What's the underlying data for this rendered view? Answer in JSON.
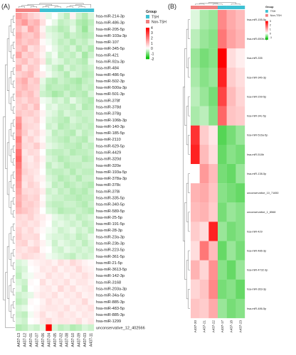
{
  "panel_labels": [
    "(A)",
    "(B)"
  ],
  "colors": {
    "low": "#00c000",
    "mid": "#ffffff",
    "high": "#ff0000",
    "group_tsh": "#3ec1d3",
    "group_nontsh": "#f08080"
  },
  "chart_data": [
    {
      "type": "heatmap",
      "title": "(A)",
      "legend_group_title": "Group",
      "legend_group_items": [
        "TSH",
        "Non-TSH"
      ],
      "legend_scale_ticks": [
        "4",
        "3",
        "2",
        "1",
        "0",
        "-1",
        "-2"
      ],
      "value_range": [
        -2,
        4
      ],
      "columns": [
        "A437-13",
        "A437-12",
        "A437-01",
        "A437-07",
        "A437-06",
        "A437-04",
        "A437-05",
        "A437-02",
        "A437-08",
        "A437-10",
        "A437-09",
        "A437-03",
        "A437-11"
      ],
      "column_groups": [
        "Non-TSH",
        "Non-TSH",
        "Non-TSH",
        "Non-TSH",
        "TSH",
        "TSH",
        "TSH",
        "TSH",
        "TSH",
        "TSH",
        "TSH",
        "TSH",
        "TSH"
      ],
      "rows": [
        "hsa-miR-214-3p",
        "hsa-miR-486-3p",
        "hsa-miR-205-5p",
        "hsa-miR-103a-3p",
        "hsa-miR-107",
        "hsa-miR-345-5p",
        "hsa-miR-421",
        "hsa-miR-92a-3p",
        "hsa-miR-484",
        "hsa-miR-486-5p",
        "hsa-miR-502-3p",
        "hsa-miR-500a-3p",
        "hsa-miR-501-3p",
        "hsa-miR-378f",
        "hsa-miR-378d",
        "hsa-miR-378g",
        "hsa-miR-106b-3p",
        "hsa-miR-140-3p",
        "hsa-miR-185-5p",
        "hsa-miR-2110",
        "hsa-miR-629-5p",
        "hsa-miR-4429",
        "hsa-miR-320d",
        "hsa-miR-320e",
        "hsa-miR-193a-5p",
        "hsa-miR-378a-3p",
        "hsa-miR-378c",
        "hsa-miR-378i",
        "hsa-miR-335-5p",
        "hsa-miR-340-5p",
        "hsa-miR-589-5p",
        "hsa-miR-25-5p",
        "hsa-miR-191-5p",
        "hsa-miR-28-3p",
        "hsa-miR-23a-3p",
        "hsa-miR-23b-3p",
        "hsa-miR-223-5p",
        "hsa-miR-361-5p",
        "hsa-miR-21-5p",
        "hsa-miR-3613-5p",
        "hsa-miR-142-3p",
        "hsa-miR-3168",
        "hsa-miR-203a-3p",
        "hsa-miR-34a-5p",
        "hsa-miR-885-3p",
        "hsa-miR-483-5p",
        "hsa-miR-885-3p",
        "hsa-miR-1299",
        "unconservative_12_402566"
      ],
      "values": [
        [
          1.5,
          1.2,
          0.8,
          0.6,
          0.3,
          -0.2,
          0.0,
          -0.3,
          -0.5,
          0.2,
          -0.4,
          -0.6,
          -0.3
        ],
        [
          1.2,
          1.6,
          1.0,
          1.2,
          0.5,
          0.0,
          -0.2,
          -0.5,
          -0.4,
          -0.3,
          -0.6,
          -0.7,
          -0.5
        ],
        [
          1.0,
          0.6,
          1.4,
          1.0,
          0.2,
          -0.3,
          -0.4,
          -0.6,
          -0.5,
          -0.2,
          -0.5,
          -0.8,
          -0.4
        ],
        [
          1.3,
          0.9,
          0.8,
          1.1,
          0.4,
          -0.2,
          -0.3,
          -0.4,
          -0.6,
          -0.4,
          -0.5,
          -0.6,
          -0.5
        ],
        [
          1.1,
          0.8,
          1.0,
          0.9,
          0.1,
          -0.1,
          -0.3,
          -0.5,
          -0.4,
          -0.6,
          -0.4,
          -0.5,
          -0.3
        ],
        [
          0.9,
          1.2,
          0.5,
          0.7,
          0.3,
          0.0,
          -0.2,
          -0.4,
          -0.5,
          -0.3,
          -0.6,
          -0.4,
          -0.6
        ],
        [
          1.4,
          0.7,
          0.9,
          0.6,
          0.2,
          -0.3,
          -0.1,
          -0.5,
          -0.4,
          -0.5,
          -0.3,
          -0.7,
          -0.4
        ],
        [
          0.8,
          1.0,
          0.6,
          0.8,
          0.4,
          -0.4,
          -0.2,
          -0.3,
          -0.5,
          -0.4,
          -0.5,
          -0.6,
          -0.2
        ],
        [
          1.2,
          0.5,
          0.9,
          0.7,
          0.0,
          -0.2,
          -0.4,
          -0.6,
          -0.3,
          -0.5,
          -0.4,
          -0.5,
          -0.4
        ],
        [
          0.7,
          0.9,
          1.1,
          0.5,
          0.3,
          -0.1,
          -0.3,
          -0.4,
          -0.6,
          -0.3,
          -0.4,
          -0.6,
          -0.5
        ],
        [
          1.0,
          1.3,
          0.7,
          0.9,
          -0.2,
          -0.5,
          -0.6,
          -0.4,
          -0.5,
          -0.6,
          -0.7,
          -0.5,
          -0.4
        ],
        [
          0.9,
          1.1,
          0.8,
          0.7,
          -0.3,
          -0.6,
          -0.5,
          -0.5,
          -0.6,
          -0.5,
          -0.6,
          -0.4,
          -0.5
        ],
        [
          1.1,
          0.8,
          1.0,
          0.6,
          -0.4,
          -0.5,
          -0.7,
          -0.6,
          -0.4,
          -0.6,
          -0.5,
          -0.6,
          -0.3
        ],
        [
          0.8,
          0.6,
          0.9,
          0.8,
          -0.1,
          -0.2,
          -0.4,
          -0.3,
          -0.5,
          -0.2,
          -0.4,
          -0.5,
          -0.6
        ],
        [
          0.7,
          0.9,
          0.6,
          1.0,
          0.0,
          -0.3,
          -0.2,
          -0.4,
          -0.4,
          -0.5,
          -0.3,
          -0.6,
          -0.5
        ],
        [
          0.9,
          0.7,
          0.8,
          0.6,
          0.2,
          -0.2,
          -0.3,
          -0.5,
          -0.3,
          -0.4,
          -0.5,
          -0.4,
          -0.4
        ],
        [
          1.6,
          0.6,
          0.5,
          0.7,
          0.1,
          -0.3,
          -0.4,
          -0.5,
          -0.6,
          -0.3,
          -0.4,
          -0.5,
          -0.4
        ],
        [
          1.8,
          0.7,
          0.6,
          0.5,
          0.0,
          -0.4,
          -0.3,
          -0.6,
          -0.5,
          -0.4,
          -0.5,
          -0.4,
          -0.5
        ],
        [
          1.5,
          0.8,
          0.4,
          0.6,
          0.2,
          -0.2,
          -0.5,
          -0.4,
          -0.5,
          -0.6,
          -0.3,
          -0.5,
          -0.4
        ],
        [
          2.0,
          0.5,
          0.7,
          0.4,
          0.1,
          -0.3,
          -0.4,
          -0.5,
          -0.6,
          -0.4,
          -0.5,
          -0.6,
          -0.3
        ],
        [
          1.7,
          0.6,
          0.5,
          0.8,
          0.3,
          -0.2,
          -0.3,
          -0.4,
          -0.5,
          -0.5,
          -0.6,
          -0.4,
          -0.5
        ],
        [
          2.2,
          0.4,
          0.6,
          0.5,
          0.0,
          -0.4,
          -0.5,
          -0.5,
          -0.4,
          -0.6,
          -0.5,
          -0.5,
          -0.4
        ],
        [
          2.4,
          0.5,
          0.3,
          0.6,
          0.2,
          -0.3,
          -0.4,
          -0.6,
          -0.5,
          -0.4,
          -0.4,
          -0.6,
          -0.5
        ],
        [
          2.1,
          0.6,
          0.4,
          0.5,
          0.1,
          -0.5,
          -0.3,
          -0.4,
          -0.6,
          -0.5,
          -0.5,
          -0.4,
          -0.4
        ],
        [
          1.9,
          0.7,
          0.5,
          0.4,
          0.0,
          -0.4,
          -0.5,
          -0.5,
          -0.4,
          -0.6,
          -0.4,
          -0.5,
          -0.5
        ],
        [
          1.8,
          0.5,
          0.6,
          0.3,
          0.2,
          -0.3,
          -0.4,
          -0.6,
          -0.5,
          -0.4,
          -0.6,
          -0.4,
          -0.4
        ],
        [
          1.6,
          0.4,
          0.7,
          0.5,
          0.1,
          -0.2,
          -0.5,
          -0.4,
          -0.6,
          -0.5,
          -0.4,
          -0.5,
          -0.6
        ],
        [
          1.4,
          0.6,
          0.5,
          0.6,
          0.3,
          -0.4,
          -0.3,
          -0.5,
          -0.4,
          -0.6,
          -0.5,
          -0.6,
          -0.4
        ],
        [
          1.2,
          0.8,
          0.6,
          0.7,
          0.1,
          -0.3,
          -0.4,
          -0.4,
          -0.5,
          -0.5,
          -0.6,
          -0.5,
          -0.5
        ],
        [
          1.3,
          0.7,
          0.8,
          0.6,
          0.2,
          -0.4,
          -0.5,
          -0.5,
          -0.4,
          -0.4,
          -0.5,
          -0.6,
          -0.4
        ],
        [
          1.1,
          0.9,
          0.7,
          0.5,
          0.0,
          -0.3,
          -0.4,
          -0.6,
          -0.5,
          -0.5,
          -0.4,
          -0.5,
          -0.6
        ],
        [
          0.6,
          0.5,
          0.7,
          0.4,
          0.3,
          0.1,
          -0.2,
          -0.3,
          -0.4,
          -0.3,
          -0.5,
          -0.4,
          -0.3
        ],
        [
          0.5,
          0.6,
          0.4,
          0.5,
          0.2,
          0.0,
          -0.3,
          -0.2,
          -0.3,
          -0.4,
          -0.3,
          -0.5,
          -0.4
        ],
        [
          0.7,
          0.4,
          0.6,
          0.3,
          0.1,
          -0.1,
          -0.2,
          -0.4,
          -0.3,
          -0.2,
          -0.4,
          -0.3,
          -0.5
        ],
        [
          0.8,
          0.5,
          0.5,
          0.6,
          0.0,
          -0.2,
          -0.3,
          -0.3,
          -0.4,
          -0.3,
          -0.5,
          -0.4,
          -0.2
        ],
        [
          0.6,
          0.7,
          0.3,
          0.5,
          0.2,
          -0.1,
          -0.4,
          -0.2,
          -0.3,
          -0.4,
          -0.3,
          -0.5,
          -0.3
        ],
        [
          0.5,
          0.4,
          0.6,
          0.7,
          0.1,
          0.0,
          -0.3,
          -0.4,
          -0.2,
          -0.3,
          -0.4,
          -0.3,
          -0.4
        ],
        [
          0.4,
          0.6,
          0.5,
          0.4,
          0.3,
          -0.1,
          -0.2,
          -0.3,
          -0.4,
          -0.5,
          -0.3,
          -0.4,
          -0.3
        ],
        [
          -0.3,
          -0.2,
          0.1,
          0.2,
          0.3,
          0.4,
          0.2,
          0.5,
          0.3,
          0.6,
          0.4,
          0.2,
          0.1
        ],
        [
          -0.4,
          -0.3,
          0.0,
          0.1,
          0.4,
          0.3,
          0.5,
          0.2,
          0.4,
          0.3,
          0.6,
          0.3,
          0.2
        ],
        [
          -0.5,
          -0.2,
          -0.1,
          0.2,
          0.2,
          0.5,
          0.3,
          0.4,
          0.2,
          0.4,
          0.3,
          0.5,
          0.3
        ],
        [
          -0.3,
          -0.4,
          0.1,
          0.0,
          0.5,
          0.2,
          0.4,
          0.3,
          0.5,
          0.2,
          0.4,
          0.4,
          0.2
        ],
        [
          -0.2,
          -0.5,
          0.0,
          0.1,
          0.3,
          0.4,
          0.2,
          0.6,
          0.3,
          0.5,
          0.2,
          0.3,
          0.4
        ],
        [
          -0.4,
          -0.3,
          -0.2,
          0.2,
          0.4,
          0.3,
          0.5,
          0.2,
          0.4,
          0.3,
          0.5,
          0.2,
          0.3
        ],
        [
          -0.5,
          -0.4,
          0.1,
          0.0,
          0.2,
          0.5,
          0.3,
          0.4,
          0.2,
          0.4,
          0.3,
          0.6,
          0.2
        ],
        [
          -0.3,
          -0.2,
          0.0,
          0.1,
          0.3,
          0.4,
          0.4,
          0.3,
          0.5,
          0.2,
          0.4,
          0.3,
          0.5
        ],
        [
          -0.4,
          -0.5,
          -0.1,
          0.2,
          0.5,
          0.2,
          0.3,
          0.5,
          0.3,
          0.4,
          0.2,
          0.4,
          0.3
        ],
        [
          -0.3,
          -0.4,
          0.0,
          0.1,
          0.4,
          0.6,
          0.3,
          0.4,
          0.4,
          0.3,
          0.5,
          0.2,
          0.4
        ],
        [
          -0.6,
          -0.5,
          -0.3,
          -0.4,
          -0.2,
          4.0,
          -0.3,
          -0.5,
          -0.4,
          -0.6,
          -0.5,
          -0.3,
          -0.4
        ]
      ]
    },
    {
      "type": "heatmap",
      "title": "(B)",
      "legend_group_title": "Group",
      "legend_group_items": [
        "TSH",
        "Non-TSH"
      ],
      "legend_scale_ticks": [
        "3",
        "2",
        "1",
        "0",
        "-1"
      ],
      "value_range": [
        -1.5,
        3
      ],
      "columns": [
        "A437-20",
        "A437-21",
        "A437-22",
        "A437-17",
        "A437-18",
        "A437-23"
      ],
      "column_groups": [
        "Non-TSH",
        "Non-TSH",
        "Non-TSH",
        "TSH",
        "TSH",
        "TSH"
      ],
      "rows": [
        "hsa-miR-155-5p",
        "hsa-miR-650b-5p",
        "hsa-miR-335",
        "hsa-miR-34b-3p",
        "hsa-miR-299-5p",
        "hsa-miR-34c-5p",
        "hsa-miR-516a-5p",
        "hsa-miR-518b",
        "hsa-miR-138-5p",
        "unconservative_10_71650",
        "unconservative_1_8568",
        "hsa-miR-429",
        "hsa-miR-486-3p",
        "hsa-miR-4732-3p",
        "hsa-miR-363-3p",
        "hsa-miR-486-5p"
      ],
      "values": [
        [
          -0.2,
          -0.5,
          -0.6,
          1.4,
          1.0,
          0.8
        ],
        [
          -0.4,
          -0.6,
          -0.7,
          1.6,
          1.1,
          0.9
        ],
        [
          -0.6,
          -0.8,
          -0.7,
          3.0,
          0.4,
          0.2
        ],
        [
          -0.5,
          -0.7,
          -0.6,
          2.6,
          0.6,
          0.4
        ],
        [
          -0.4,
          -0.6,
          -0.8,
          2.2,
          0.8,
          0.5
        ],
        [
          -0.5,
          -0.4,
          -0.7,
          1.8,
          0.7,
          0.6
        ],
        [
          2.4,
          0.6,
          0.3,
          -1.0,
          -0.8,
          -0.6
        ],
        [
          2.6,
          0.8,
          0.4,
          -0.9,
          -0.7,
          -0.8
        ],
        [
          0.0,
          1.2,
          0.8,
          -0.8,
          -0.9,
          -0.6
        ],
        [
          0.9,
          1.0,
          0.7,
          -0.7,
          -0.8,
          -0.9
        ],
        [
          0.8,
          0.9,
          0.6,
          -0.8,
          -0.6,
          -0.7
        ],
        [
          0.6,
          0.4,
          2.6,
          -0.6,
          -0.8,
          -0.7
        ],
        [
          0.4,
          1.6,
          0.8,
          -0.9,
          -0.6,
          -0.8
        ],
        [
          0.9,
          0.5,
          1.3,
          -0.7,
          -0.9,
          -0.6
        ],
        [
          0.5,
          0.7,
          1.4,
          -0.8,
          -0.7,
          -0.9
        ],
        [
          0.7,
          0.6,
          1.0,
          -0.6,
          -0.8,
          -0.7
        ]
      ]
    }
  ]
}
